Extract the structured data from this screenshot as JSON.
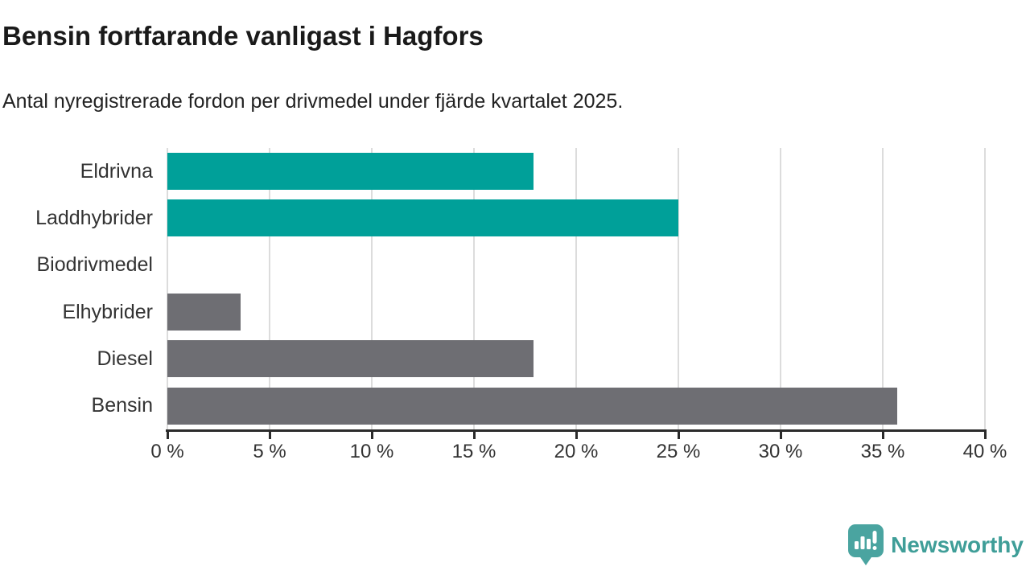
{
  "header": {
    "title": "Bensin fortfarande vanligast i Hagfors",
    "subtitle": "Antal nyregistrerade fordon per drivmedel under fjärde kvartalet 2025."
  },
  "chart_data": {
    "type": "bar",
    "orientation": "horizontal",
    "categories": [
      "Eldrivna",
      "Laddhybrider",
      "Biodrivmedel",
      "Elhybrider",
      "Diesel",
      "Bensin"
    ],
    "values": [
      17.9,
      25.0,
      0,
      3.6,
      17.9,
      35.7
    ],
    "unit": "%",
    "bar_colors": [
      "#00a099",
      "#00a099",
      "#6e6e73",
      "#6e6e73",
      "#6e6e73",
      "#6e6e73"
    ],
    "title": "Bensin fortfarande vanligast i Hagfors",
    "xlabel": "",
    "ylabel": "",
    "xlim": [
      0,
      40
    ],
    "x_ticks": [
      0,
      5,
      10,
      15,
      20,
      25,
      30,
      35,
      40
    ],
    "x_tick_labels": [
      "0 %",
      "5 %",
      "10 %",
      "15 %",
      "20 %",
      "25 %",
      "30 %",
      "35 %",
      "40 %"
    ],
    "grid": "vertical-gridlines-on",
    "legend": "none"
  },
  "branding": {
    "logo_text": "Newsworthy",
    "logo_icon": "speech-bubble-bar-chart-icon",
    "logo_color": "#3f9e98"
  },
  "colors": {
    "accent_teal": "#00a099",
    "neutral_gray": "#6e6e73",
    "gridline": "#dcdcdc",
    "axis": "#2b2b2b",
    "title_text": "#1a1a1a",
    "body_text": "#333333"
  }
}
